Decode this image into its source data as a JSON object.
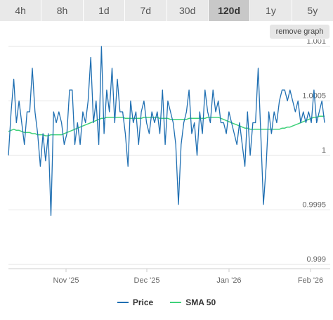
{
  "range_tabs": [
    {
      "label": "4h",
      "active": false
    },
    {
      "label": "8h",
      "active": false
    },
    {
      "label": "1d",
      "active": false
    },
    {
      "label": "7d",
      "active": false
    },
    {
      "label": "30d",
      "active": false
    },
    {
      "label": "120d",
      "active": true
    },
    {
      "label": "1y",
      "active": false
    },
    {
      "label": "5y",
      "active": false
    }
  ],
  "remove_graph_label": "remove graph",
  "legend": {
    "price_label": "Price",
    "sma_label": "SMA 50"
  },
  "colors": {
    "price": "#1f6fb2",
    "sma": "#3fd17a",
    "grid": "#e6e6e6",
    "active_tab": "#c8c8c8",
    "tab": "#e9e9e9"
  },
  "chart_data": {
    "type": "line",
    "y_ticks": [
      0.999,
      0.9995,
      1,
      1.0005,
      1.001
    ],
    "y_tick_labels": [
      "0.999",
      "0.9995",
      "1",
      "1.0005",
      "1.001"
    ],
    "ylim": [
      0.999,
      1.001
    ],
    "x_tick_labels": [
      "Nov '25",
      "Dec '25",
      "Jan '26",
      "Feb '26"
    ],
    "grid": true,
    "legend_position": "bottom",
    "series": [
      {
        "name": "Price",
        "values": [
          1.0,
          1.0004,
          1.0007,
          1.0003,
          1.0005,
          1.0003,
          1.0001,
          1.0004,
          1.0004,
          1.0008,
          1.0004,
          1.0002,
          0.9999,
          1.0002,
          0.99995,
          1.0002,
          0.99945,
          1.0004,
          1.0003,
          1.0004,
          1.0003,
          1.0001,
          1.0002,
          1.0006,
          1.0006,
          1.0001,
          1.0003,
          1.0001,
          1.0004,
          1.0003,
          1.0005,
          1.0009,
          1.0003,
          1.0005,
          1.0001,
          1.001,
          1.0002,
          1.0006,
          1.0004,
          1.0008,
          1.0003,
          1.0007,
          1.0004,
          1.0004,
          1.0002,
          0.9999,
          1.0005,
          1.0003,
          1.0004,
          1.0001,
          1.0004,
          1.0005,
          1.0003,
          1.0002,
          1.0004,
          1.0003,
          1.0004,
          1.0002,
          1.0006,
          1.0001,
          1.0005,
          1.0004,
          1.0003,
          1.0001,
          0.99955,
          1.0001,
          1.0003,
          1.0004,
          1.0006,
          1.0002,
          1.0003,
          1.0,
          1.0004,
          1.0002,
          1.0006,
          1.0004,
          1.0003,
          1.0006,
          1.0004,
          1.0005,
          1.0003,
          1.0003,
          1.0002,
          1.0004,
          1.0003,
          1.0002,
          1.0001,
          1.0003,
          1.0001,
          0.9999,
          1.0004,
          1.0,
          1.0003,
          1.0003,
          1.0008,
          1.0002,
          0.99955,
          0.9999,
          1.0004,
          1.0002,
          1.0004,
          1.0003,
          1.0005,
          1.0006,
          1.0006,
          1.0005,
          1.0006,
          1.0005,
          1.0004,
          1.0005,
          1.0003,
          1.0004,
          1.0003,
          1.0004,
          1.0003,
          1.0006,
          1.0003,
          1.0004,
          1.0005,
          1.0003
        ]
      },
      {
        "name": "SMA 50",
        "values": [
          1.00022,
          1.00023,
          1.00024,
          1.00023,
          1.00023,
          1.00022,
          1.00021,
          1.00021,
          1.00021,
          1.0002,
          1.0002,
          1.00019,
          1.00019,
          1.00019,
          1.00018,
          1.00018,
          1.00019,
          1.00019,
          1.00019,
          1.00019,
          1.00019,
          1.0002,
          1.00021,
          1.00022,
          1.00023,
          1.00024,
          1.00025,
          1.00026,
          1.00027,
          1.00028,
          1.00029,
          1.0003,
          1.00031,
          1.00032,
          1.00033,
          1.00034,
          1.00034,
          1.00035,
          1.00035,
          1.00035,
          1.00035,
          1.00035,
          1.00035,
          1.00035,
          1.00034,
          1.00034,
          1.00034,
          1.00034,
          1.00034,
          1.00034,
          1.00034,
          1.00035,
          1.00035,
          1.00035,
          1.00035,
          1.00035,
          1.00035,
          1.00034,
          1.00034,
          1.00034,
          1.00034,
          1.00033,
          1.00033,
          1.00033,
          1.00033,
          1.00033,
          1.00033,
          1.00033,
          1.00034,
          1.00034,
          1.00034,
          1.00034,
          1.00034,
          1.00034,
          1.00034,
          1.00035,
          1.00035,
          1.00035,
          1.00035,
          1.00035,
          1.00034,
          1.00033,
          1.00032,
          1.00031,
          1.0003,
          1.00029,
          1.00028,
          1.00027,
          1.00026,
          1.00025,
          1.00025,
          1.00024,
          1.00024,
          1.00024,
          1.00024,
          1.00024,
          1.00024,
          1.00024,
          1.00024,
          1.00024,
          1.00024,
          1.00024,
          1.00024,
          1.00025,
          1.00025,
          1.00026,
          1.00026,
          1.00027,
          1.00028,
          1.00029,
          1.0003,
          1.00031,
          1.00032,
          1.00033,
          1.00034,
          1.00035,
          1.00035,
          1.00036,
          1.00036,
          1.00036
        ]
      }
    ]
  }
}
